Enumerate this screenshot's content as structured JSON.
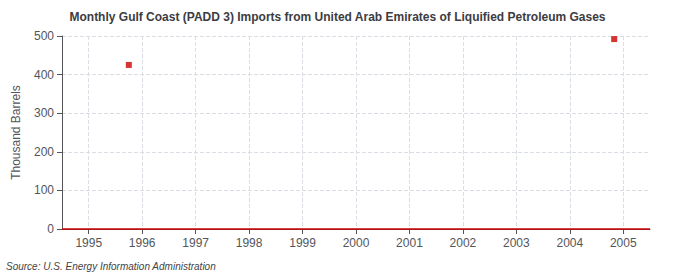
{
  "chart_data": {
    "type": "scatter",
    "title": "Monthly Gulf Coast (PADD 3) Imports from United Arab Emirates of Liquified Petroleum Gases",
    "ylabel": "Thousand Barrels",
    "annotation": "Source: U.S. Energy Information Administration",
    "x": [
      1995.75,
      2004.83
    ],
    "values": [
      425,
      492
    ],
    "color": "#cc0000",
    "marker": "square",
    "xlim": [
      1994.5,
      2005.5
    ],
    "xticks": [
      1995,
      1996,
      1997,
      1998,
      1999,
      2000,
      2001,
      2002,
      2003,
      2004,
      2005
    ],
    "ylim": [
      0,
      500
    ],
    "yticks": [
      0,
      100,
      200,
      300,
      400,
      500
    ],
    "grid": true
  }
}
